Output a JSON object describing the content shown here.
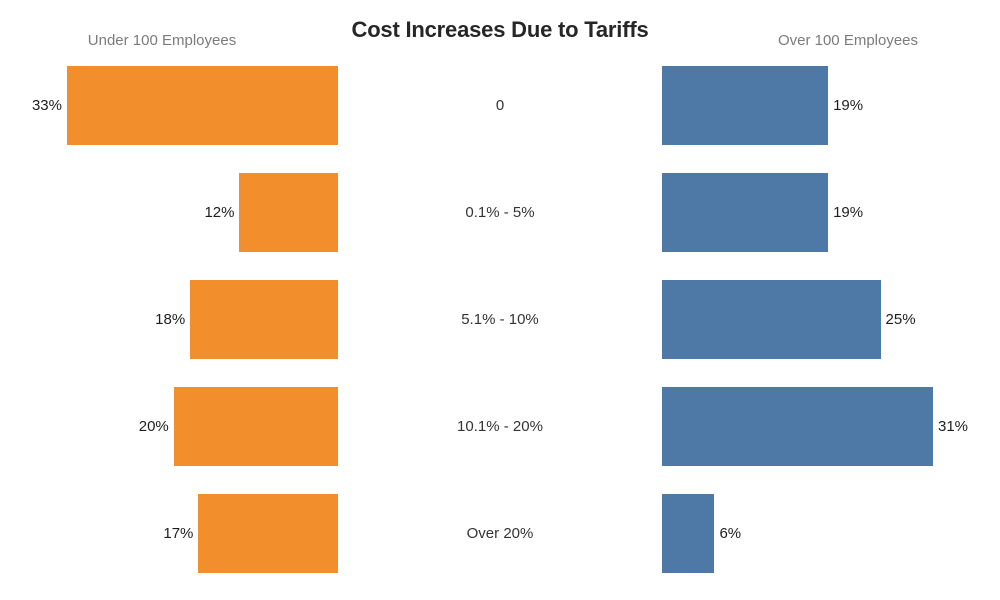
{
  "title": "Cost Increases Due to Tariffs",
  "left_header": "Under 100 Employees",
  "right_header": "Over 100 Employees",
  "colors": {
    "left_bar": "#f28e2b",
    "right_bar": "#4e79a7",
    "header_text": "#7b7b7b",
    "title_text": "#262626",
    "label_text": "#1e1e1e"
  },
  "chart_data": {
    "type": "bar",
    "variant": "diverging-horizontal (butterfly)",
    "title": "Cost Increases Due to Tariffs",
    "categories": [
      "0",
      "0.1% - 5%",
      "5.1% - 10%",
      "10.1% - 20%",
      "Over 20%"
    ],
    "series": [
      {
        "name": "Under 100 Employees",
        "side": "left",
        "color": "#f28e2b",
        "values": [
          33,
          12,
          18,
          20,
          17
        ],
        "labels": [
          "33%",
          "12%",
          "18%",
          "20%",
          "17%"
        ],
        "axis_range": [
          0,
          33
        ]
      },
      {
        "name": "Over 100 Employees",
        "side": "right",
        "color": "#4e79a7",
        "values": [
          19,
          19,
          25,
          31,
          6
        ],
        "labels": [
          "19%",
          "19%",
          "25%",
          "31%",
          "6%"
        ],
        "axis_range": [
          0,
          31
        ]
      }
    ],
    "grid": false,
    "axes_visible": false,
    "value_labels": "outside bar ends",
    "category_labels_position": "center column"
  }
}
